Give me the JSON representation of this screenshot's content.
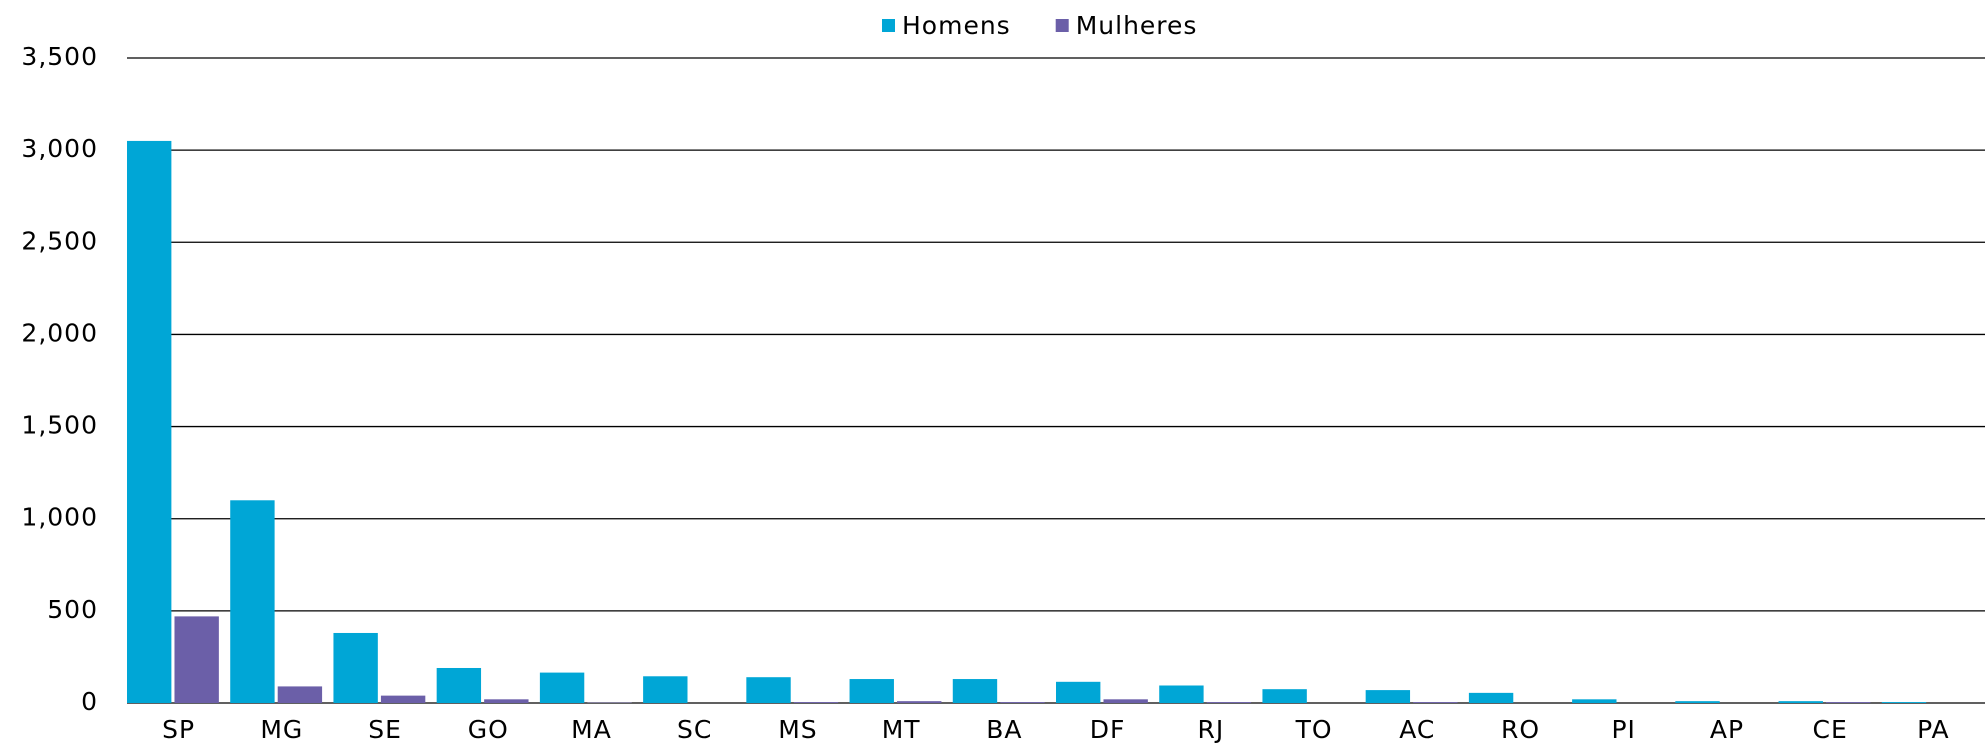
{
  "chart_data": {
    "type": "bar",
    "categories": [
      "SP",
      "MG",
      "SE",
      "GO",
      "MA",
      "SC",
      "MS",
      "MT",
      "BA",
      "DF",
      "RJ",
      "TO",
      "AC",
      "RO",
      "PI",
      "AP",
      "CE",
      "PA"
    ],
    "series": [
      {
        "name": "Homens",
        "color": "#00a6d6",
        "values": [
          3050,
          1100,
          380,
          190,
          165,
          145,
          140,
          130,
          130,
          115,
          95,
          75,
          70,
          55,
          20,
          10,
          10,
          5
        ]
      },
      {
        "name": "Mulheres",
        "color": "#6b5fa8",
        "values": [
          470,
          90,
          40,
          20,
          2,
          0,
          5,
          10,
          5,
          20,
          5,
          0,
          5,
          0,
          0,
          0,
          5,
          0
        ]
      }
    ],
    "ylim": [
      0,
      3500
    ],
    "yticks": [
      0,
      500,
      {
        "value": 1000,
        "label": "1,000"
      },
      {
        "value": 1500,
        "label": "1,500"
      },
      {
        "value": 2000,
        "label": "2,000"
      },
      {
        "value": 2500,
        "label": "2,500"
      },
      {
        "value": 3000,
        "label": "3,000"
      },
      {
        "value": 3500,
        "label": "3,500"
      }
    ],
    "grid": true,
    "legend": "top"
  }
}
